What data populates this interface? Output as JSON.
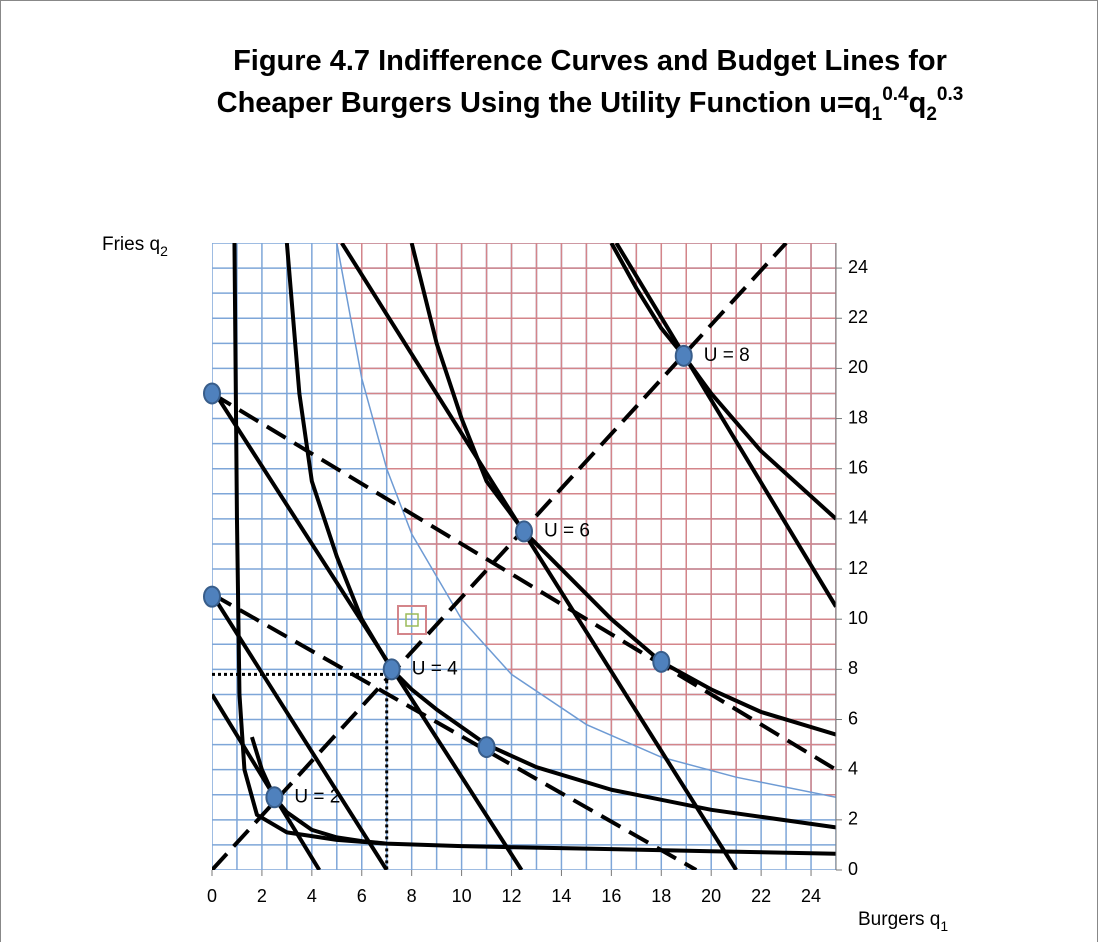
{
  "chart_data": {
    "type": "line",
    "title": [
      "Figure 4.7 Indifference Curves and Budget Lines for",
      [
        "Cheaper Burgers Using the Utility Function u=q",
        "1",
        "0.4",
        "q",
        "2",
        "0.3"
      ]
    ],
    "xlabel": [
      "Burgers q",
      "1"
    ],
    "ylabel": [
      "Fries q",
      "2"
    ],
    "xlim": [
      0,
      25
    ],
    "ylim": [
      0,
      25
    ],
    "xticks": [
      0,
      2,
      4,
      6,
      8,
      10,
      12,
      14,
      16,
      18,
      20,
      22,
      24
    ],
    "yticks": [
      0,
      2,
      4,
      6,
      8,
      10,
      12,
      14,
      16,
      18,
      20,
      22,
      24
    ],
    "grid": true,
    "grid_lines": [
      0,
      1,
      2,
      3,
      4,
      5,
      6,
      7,
      8,
      9,
      10,
      11,
      12,
      13,
      14,
      15,
      16,
      17,
      18,
      19,
      20,
      21,
      22,
      23,
      24,
      25
    ],
    "grid_color": "#7ea6d8",
    "region_color": "#d4858a",
    "region_boundary": {
      "color": "#6e9bd4",
      "x": [
        5,
        6,
        7,
        8,
        10,
        12,
        15,
        18,
        21,
        25
      ],
      "values": [
        25,
        19.6,
        16,
        13.4,
        10,
        7.8,
        5.8,
        4.5,
        3.7,
        2.9
      ]
    },
    "series": [
      {
        "color": "#000000",
        "style": "solid",
        "x": [
          0.9,
          1,
          1.1,
          1.3,
          1.8,
          3,
          5,
          7,
          10,
          15,
          20,
          25
        ],
        "values": [
          25,
          14,
          7,
          4,
          2.2,
          1.5,
          1.2,
          1.05,
          0.95,
          0.85,
          0.75,
          0.65
        ]
      },
      {
        "color": "#000000",
        "style": "solid",
        "x": [
          1.6,
          2,
          2.5,
          3,
          4,
          5,
          6,
          7
        ],
        "values": [
          5.3,
          4,
          2.9,
          2.3,
          1.6,
          1.3,
          1.15,
          1.05
        ]
      },
      {
        "color": "#000000",
        "style": "solid",
        "x": [
          3,
          3.5,
          4,
          5,
          6,
          7.2,
          8,
          9,
          11,
          13,
          16,
          20,
          25
        ],
        "values": [
          25,
          19,
          15.5,
          12.5,
          10,
          8,
          7.2,
          6.4,
          5,
          4.1,
          3.2,
          2.4,
          1.7
        ]
      },
      {
        "color": "#000000",
        "style": "solid",
        "x": [
          8,
          9,
          10,
          11,
          12.5,
          14,
          16,
          18,
          20,
          22,
          25
        ],
        "values": [
          25,
          21,
          18,
          15.5,
          13.5,
          12,
          10,
          8.3,
          7.2,
          6.3,
          5.4
        ]
      },
      {
        "color": "#000000",
        "style": "solid",
        "x": [
          16,
          17,
          18,
          18.9,
          20,
          22,
          25
        ],
        "values": [
          25,
          23.2,
          21.6,
          20.5,
          19,
          16.7,
          14
        ]
      },
      {
        "color": "#000000",
        "style": "solid",
        "x": [
          0,
          4.3
        ],
        "values": [
          7,
          0
        ]
      },
      {
        "color": "#000000",
        "style": "solid",
        "x": [
          0,
          7
        ],
        "values": [
          11,
          0
        ]
      },
      {
        "color": "#000000",
        "style": "solid",
        "x": [
          0,
          12.4
        ],
        "values": [
          19.2,
          0
        ]
      },
      {
        "color": "#000000",
        "style": "solid",
        "x": [
          5.2,
          21
        ],
        "values": [
          25,
          0
        ]
      },
      {
        "color": "#000000",
        "style": "solid",
        "x": [
          16.2,
          25
        ],
        "values": [
          25,
          10.5
        ]
      },
      {
        "color": "#000000",
        "style": "dashed",
        "x": [
          0,
          25
        ],
        "values": [
          19,
          4
        ]
      },
      {
        "color": "#000000",
        "style": "dashed",
        "x": [
          0,
          19.4
        ],
        "values": [
          11,
          0
        ]
      },
      {
        "color": "#000000",
        "style": "dashed",
        "x": [
          0,
          23
        ],
        "values": [
          0,
          25
        ]
      },
      {
        "color": "#000000",
        "style": "dotted",
        "x": [
          0,
          7
        ],
        "values": [
          7.8,
          7.8
        ]
      },
      {
        "color": "#000000",
        "style": "dotted",
        "x": [
          7,
          7
        ],
        "values": [
          7.8,
          0
        ]
      }
    ],
    "points": {
      "color": "#4f81bd",
      "x": [
        0,
        0,
        2.5,
        7.2,
        11,
        12.5,
        18,
        18.9
      ],
      "values": [
        19,
        10.9,
        2.9,
        8,
        4.9,
        13.5,
        8.3,
        20.5
      ]
    },
    "annotations": [
      "U = 2",
      "U = 4",
      "U = 6",
      "U = 8"
    ]
  }
}
